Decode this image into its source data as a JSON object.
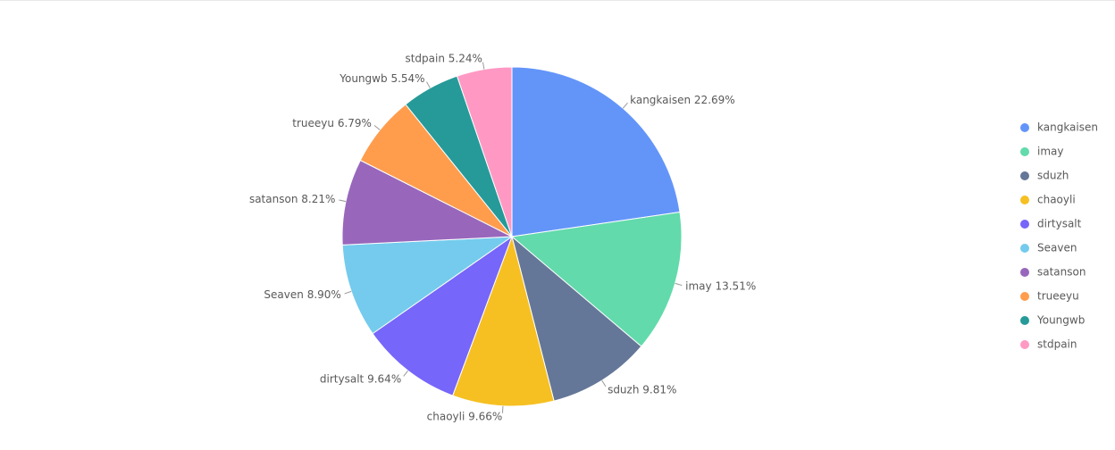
{
  "chart_data": {
    "type": "pie",
    "categories": [
      "kangkaisen",
      "imay",
      "sduzh",
      "chaoyli",
      "dirtysalt",
      "Seaven",
      "satanson",
      "trueeyu",
      "Youngwb",
      "stdpain"
    ],
    "values": [
      22.69,
      13.51,
      9.81,
      9.66,
      9.64,
      8.9,
      8.21,
      6.79,
      5.54,
      5.24
    ],
    "value_labels": [
      "22.69%",
      "13.51%",
      "9.81%",
      "9.66%",
      "9.64%",
      "8.90%",
      "8.21%",
      "6.79%",
      "5.54%",
      "5.24%"
    ],
    "colors": [
      "#6395f9",
      "#62daab",
      "#657798",
      "#f6c022",
      "#7666f9",
      "#74cbed",
      "#9867bc",
      "#ff9d4d",
      "#269a99",
      "#ff99c3"
    ],
    "legend": "right"
  }
}
